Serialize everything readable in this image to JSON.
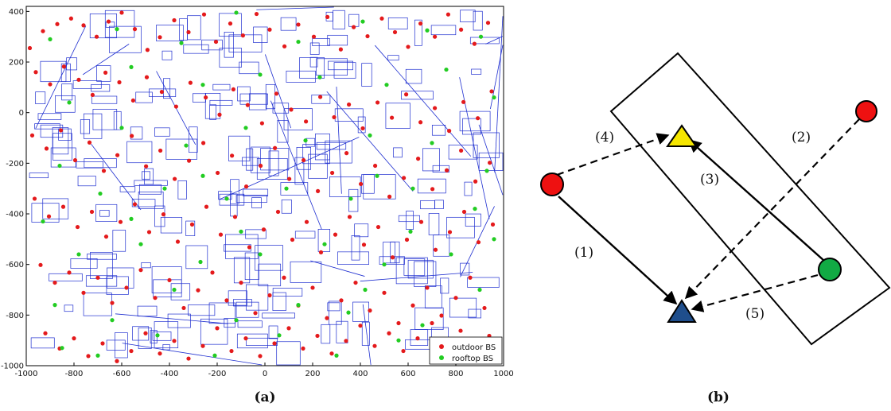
{
  "chart_data": {
    "type": "scatter",
    "x_ticks": [
      "-1000",
      "-800",
      "-600",
      "-400",
      "-200",
      "0",
      "200",
      "400",
      "600",
      "800",
      "1000"
    ],
    "y_ticks": [
      "400",
      "200",
      "0",
      "-200",
      "-400",
      "-600",
      "-800",
      "-1000"
    ],
    "xlim": [
      -1000,
      1000
    ],
    "ylim": [
      -1000,
      420
    ],
    "legend": {
      "position": "bottom-right"
    },
    "colors": {
      "outdoor": "#e41a1c",
      "rooftop": "#22cc22",
      "streets": "#1f2fd0"
    },
    "series": [
      {
        "name": "outdoor BS",
        "points": [
          [
            -985,
            255
          ],
          [
            -930,
            322
          ],
          [
            -870,
            350
          ],
          [
            -812,
            372
          ],
          [
            -760,
            345
          ],
          [
            -705,
            300
          ],
          [
            -655,
            360
          ],
          [
            -600,
            395
          ],
          [
            -545,
            330
          ],
          [
            -492,
            248
          ],
          [
            -440,
            298
          ],
          [
            -380,
            365
          ],
          [
            -320,
            318
          ],
          [
            -255,
            388
          ],
          [
            -205,
            280
          ],
          [
            -145,
            352
          ],
          [
            -92,
            305
          ],
          [
            -35,
            390
          ],
          [
            20,
            328
          ],
          [
            82,
            262
          ],
          [
            140,
            348
          ],
          [
            205,
            300
          ],
          [
            262,
            378
          ],
          [
            318,
            250
          ],
          [
            372,
            338
          ],
          [
            430,
            302
          ],
          [
            490,
            372
          ],
          [
            545,
            318
          ],
          [
            600,
            260
          ],
          [
            652,
            352
          ],
          [
            712,
            300
          ],
          [
            768,
            388
          ],
          [
            822,
            328
          ],
          [
            878,
            272
          ],
          [
            935,
            355
          ],
          [
            -960,
            160
          ],
          [
            -900,
            112
          ],
          [
            -842,
            182
          ],
          [
            -780,
            130
          ],
          [
            -722,
            70
          ],
          [
            -668,
            158
          ],
          [
            -610,
            120
          ],
          [
            -552,
            48
          ],
          [
            -495,
            140
          ],
          [
            -432,
            82
          ],
          [
            -372,
            24
          ],
          [
            -312,
            118
          ],
          [
            -248,
            60
          ],
          [
            -190,
            -8
          ],
          [
            -132,
            92
          ],
          [
            -72,
            30
          ],
          [
            -12,
            -42
          ],
          [
            48,
            75
          ],
          [
            110,
            12
          ],
          [
            172,
            -35
          ],
          [
            232,
            62
          ],
          [
            290,
            -18
          ],
          [
            352,
            32
          ],
          [
            410,
            -62
          ],
          [
            472,
            40
          ],
          [
            532,
            -20
          ],
          [
            592,
            72
          ],
          [
            652,
            -38
          ],
          [
            712,
            18
          ],
          [
            772,
            -72
          ],
          [
            832,
            42
          ],
          [
            892,
            -22
          ],
          [
            950,
            84
          ],
          [
            -975,
            -90
          ],
          [
            -915,
            -142
          ],
          [
            -855,
            -70
          ],
          [
            -795,
            -188
          ],
          [
            -735,
            -118
          ],
          [
            -675,
            -230
          ],
          [
            -618,
            -168
          ],
          [
            -558,
            -92
          ],
          [
            -498,
            -212
          ],
          [
            -438,
            -150
          ],
          [
            -378,
            -262
          ],
          [
            -318,
            -190
          ],
          [
            -258,
            -120
          ],
          [
            -198,
            -238
          ],
          [
            -138,
            -170
          ],
          [
            -78,
            -292
          ],
          [
            -18,
            -210
          ],
          [
            42,
            -140
          ],
          [
            102,
            -262
          ],
          [
            162,
            -188
          ],
          [
            222,
            -310
          ],
          [
            282,
            -238
          ],
          [
            342,
            -160
          ],
          [
            402,
            -282
          ],
          [
            462,
            -210
          ],
          [
            522,
            -332
          ],
          [
            582,
            -258
          ],
          [
            642,
            -182
          ],
          [
            702,
            -302
          ],
          [
            762,
            -228
          ],
          [
            822,
            -150
          ],
          [
            882,
            -272
          ],
          [
            942,
            -198
          ],
          [
            -965,
            -340
          ],
          [
            -905,
            -410
          ],
          [
            -845,
            -372
          ],
          [
            -785,
            -452
          ],
          [
            -725,
            -392
          ],
          [
            -665,
            -490
          ],
          [
            -605,
            -432
          ],
          [
            -545,
            -362
          ],
          [
            -485,
            -472
          ],
          [
            -425,
            -402
          ],
          [
            -365,
            -510
          ],
          [
            -305,
            -442
          ],
          [
            -245,
            -372
          ],
          [
            -185,
            -482
          ],
          [
            -125,
            -412
          ],
          [
            -65,
            -532
          ],
          [
            -5,
            -462
          ],
          [
            55,
            -392
          ],
          [
            115,
            -502
          ],
          [
            175,
            -432
          ],
          [
            235,
            -552
          ],
          [
            295,
            -482
          ],
          [
            355,
            -412
          ],
          [
            415,
            -522
          ],
          [
            475,
            -452
          ],
          [
            535,
            -572
          ],
          [
            595,
            -502
          ],
          [
            655,
            -432
          ],
          [
            715,
            -542
          ],
          [
            775,
            -472
          ],
          [
            835,
            -392
          ],
          [
            895,
            -512
          ],
          [
            955,
            -442
          ],
          [
            -940,
            -602
          ],
          [
            -880,
            -672
          ],
          [
            -820,
            -632
          ],
          [
            -760,
            -712
          ],
          [
            -700,
            -652
          ],
          [
            -640,
            -752
          ],
          [
            -580,
            -692
          ],
          [
            -520,
            -622
          ],
          [
            -460,
            -732
          ],
          [
            -400,
            -662
          ],
          [
            -340,
            -772
          ],
          [
            -280,
            -702
          ],
          [
            -220,
            -632
          ],
          [
            -160,
            -742
          ],
          [
            -100,
            -672
          ],
          [
            -40,
            -792
          ],
          [
            20,
            -722
          ],
          [
            80,
            -652
          ],
          [
            140,
            -762
          ],
          [
            200,
            -692
          ],
          [
            260,
            -812
          ],
          [
            320,
            -742
          ],
          [
            380,
            -672
          ],
          [
            440,
            -782
          ],
          [
            500,
            -712
          ],
          [
            560,
            -832
          ],
          [
            620,
            -762
          ],
          [
            680,
            -692
          ],
          [
            740,
            -802
          ],
          [
            800,
            -732
          ],
          [
            860,
            -652
          ],
          [
            920,
            -772
          ],
          [
            -920,
            -872
          ],
          [
            -860,
            -932
          ],
          [
            -800,
            -892
          ],
          [
            -740,
            -962
          ],
          [
            -680,
            -912
          ],
          [
            -620,
            -982
          ],
          [
            -560,
            -942
          ],
          [
            -500,
            -872
          ],
          [
            -440,
            -952
          ],
          [
            -380,
            -902
          ],
          [
            -320,
            -972
          ],
          [
            -260,
            -922
          ],
          [
            -200,
            -852
          ],
          [
            -140,
            -942
          ],
          [
            -80,
            -892
          ],
          [
            -20,
            -962
          ],
          [
            40,
            -912
          ],
          [
            100,
            -852
          ],
          [
            160,
            -932
          ],
          [
            220,
            -882
          ],
          [
            280,
            -952
          ],
          [
            340,
            -902
          ],
          [
            400,
            -842
          ],
          [
            460,
            -922
          ],
          [
            520,
            -872
          ],
          [
            580,
            -942
          ],
          [
            640,
            -892
          ],
          [
            700,
            -832
          ],
          [
            760,
            -912
          ],
          [
            820,
            -862
          ],
          [
            880,
            -932
          ],
          [
            940,
            -882
          ]
        ]
      },
      {
        "name": "rooftop BS",
        "points": [
          [
            -900,
            290
          ],
          [
            -620,
            330
          ],
          [
            -350,
            275
          ],
          [
            -120,
            395
          ],
          [
            140,
            280
          ],
          [
            410,
            360
          ],
          [
            680,
            325
          ],
          [
            905,
            300
          ],
          [
            -820,
            40
          ],
          [
            -560,
            180
          ],
          [
            -260,
            110
          ],
          [
            -20,
            150
          ],
          [
            230,
            140
          ],
          [
            510,
            110
          ],
          [
            760,
            170
          ],
          [
            960,
            60
          ],
          [
            -860,
            -210
          ],
          [
            -600,
            -60
          ],
          [
            -330,
            -130
          ],
          [
            -80,
            -60
          ],
          [
            170,
            -110
          ],
          [
            440,
            -90
          ],
          [
            700,
            -120
          ],
          [
            930,
            -230
          ],
          [
            -930,
            -430
          ],
          [
            -690,
            -320
          ],
          [
            -420,
            -300
          ],
          [
            -160,
            -340
          ],
          [
            90,
            -300
          ],
          [
            360,
            -340
          ],
          [
            620,
            -300
          ],
          [
            880,
            -380
          ],
          [
            -780,
            -560
          ],
          [
            -520,
            -520
          ],
          [
            -270,
            -590
          ],
          [
            -20,
            -560
          ],
          [
            250,
            -520
          ],
          [
            500,
            -600
          ],
          [
            780,
            -560
          ],
          [
            960,
            -500
          ],
          [
            -880,
            -760
          ],
          [
            -640,
            -820
          ],
          [
            -380,
            -700
          ],
          [
            -120,
            -820
          ],
          [
            140,
            -760
          ],
          [
            420,
            -700
          ],
          [
            660,
            -840
          ],
          [
            900,
            -700
          ],
          [
            -700,
            -960
          ],
          [
            -450,
            -880
          ],
          [
            -210,
            -960
          ],
          [
            60,
            -880
          ],
          [
            300,
            -960
          ],
          [
            560,
            -900
          ],
          [
            800,
            -970
          ],
          [
            -260,
            -250
          ],
          [
            470,
            -250
          ],
          [
            -560,
            -420
          ],
          [
            610,
            -470
          ],
          [
            -100,
            -470
          ],
          [
            350,
            -790
          ],
          [
            -850,
            -930
          ]
        ]
      }
    ]
  },
  "panel_a": {
    "label": "(a)"
  },
  "panel_b": {
    "label": "(b)",
    "links": [
      "(1)",
      "(2)",
      "(3)",
      "(4)",
      "(5)"
    ],
    "colors": {
      "red_node": "#ee1111",
      "green_node": "#11aa44",
      "yellow_triangle": "#f5e600",
      "blue_triangle": "#1f4e8c"
    }
  }
}
